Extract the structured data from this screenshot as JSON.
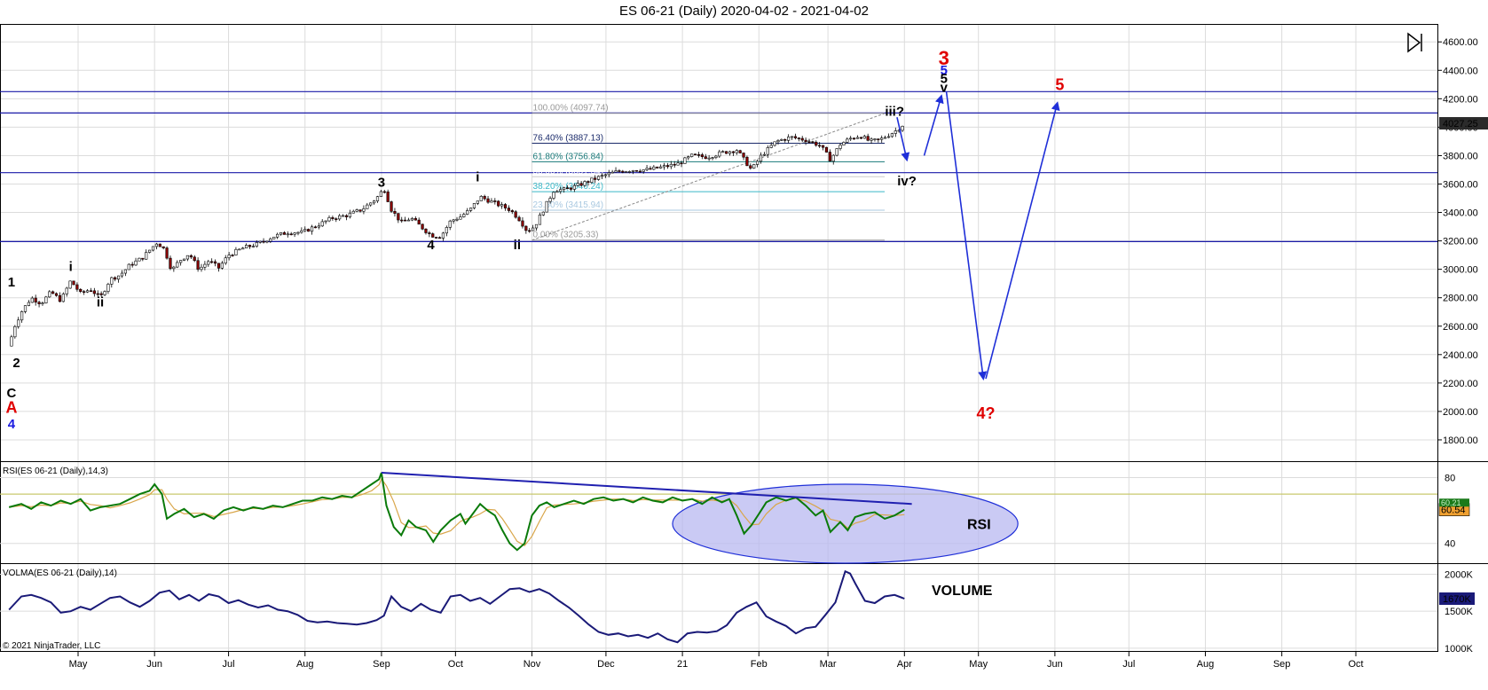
{
  "title": "ES 06-21 (Daily)  2020-04-02 - 2021-04-02",
  "copyright": "© 2021 NinjaTrader, LLC",
  "colors": {
    "grid": "#dcdcdc",
    "hline": "#1a1aa8",
    "arrow": "#1f2fd8",
    "up": "#ffffff",
    "down": "#8b0000",
    "rsi": "#0a7a0a",
    "rsi_ma": "#d9a64a",
    "rsi_level": "#c8c86e",
    "volma": "#1a1a78",
    "red_label": "#e00000"
  },
  "x_axis": {
    "months": [
      {
        "label": "May",
        "day": 29
      },
      {
        "label": "Jun",
        "day": 60
      },
      {
        "label": "Jul",
        "day": 90
      },
      {
        "label": "Aug",
        "day": 121
      },
      {
        "label": "Sep",
        "day": 152
      },
      {
        "label": "Oct",
        "day": 182
      },
      {
        "label": "Nov",
        "day": 213
      },
      {
        "label": "Dec",
        "day": 243
      },
      {
        "label": "21",
        "day": 274
      },
      {
        "label": "Feb",
        "day": 305
      },
      {
        "label": "Mar",
        "day": 333
      },
      {
        "label": "Apr",
        "day": 364
      },
      {
        "label": "May",
        "day": 394
      },
      {
        "label": "Jun",
        "day": 425
      },
      {
        "label": "Jul",
        "day": 455
      },
      {
        "label": "Aug",
        "day": 486
      },
      {
        "label": "Sep",
        "day": 517
      },
      {
        "label": "Oct",
        "day": 547
      }
    ]
  },
  "price_axis": {
    "ticks": [
      1800,
      2000,
      2200,
      2400,
      2600,
      2800,
      3000,
      3200,
      3400,
      3600,
      3800,
      4000,
      4200,
      4400,
      4600
    ],
    "ylim": [
      1650,
      4720
    ],
    "last_price": "4027.25"
  },
  "rsi_axis": {
    "ticks": [
      40,
      80
    ],
    "ylim": [
      28,
      90
    ],
    "level": 70,
    "last_value": "60.54",
    "ma_value": "60.21"
  },
  "vol_axis": {
    "ticks": [
      "1000K",
      "1500K",
      "2000K"
    ],
    "tick_values": [
      1000,
      1500,
      2000
    ],
    "ylim": [
      950,
      2150
    ],
    "last_value": "1670K"
  },
  "panels": {
    "rsi_title": "RSI(ES 06-21 (Daily),14,3)",
    "vol_title": "VOLMA(ES 06-21 (Daily),14)",
    "rsi_label": "RSI",
    "vol_label": "VOLUME"
  },
  "horizontal_lines": [
    3195,
    3680,
    4100,
    4250
  ],
  "fib_levels": [
    {
      "text": "100.00% (4097.74)",
      "value": 4097.74,
      "color": "#9a9a9a"
    },
    {
      "text": "76.40% (3887.13)",
      "value": 3887.13,
      "color": "#1a2a6a"
    },
    {
      "text": "61.80% (3756.84)",
      "value": 3756.84,
      "color": "#1a7a7a"
    },
    {
      "text": "50.00% (3651.54)",
      "value": 3651.54,
      "color": "#ffffff"
    },
    {
      "text": "38.20% (3546.24)",
      "value": 3546.24,
      "color": "#3ab8c8"
    },
    {
      "text": "23.60% (3415.94)",
      "value": 3415.94,
      "color": "#a8c8e0"
    },
    {
      "text": "0.00% (3205.33)",
      "value": 3205.33,
      "color": "#9a9a9a"
    }
  ],
  "wave_labels": [
    {
      "text": "1",
      "day": 2,
      "price": 2880,
      "color": "#000000"
    },
    {
      "text": "2",
      "day": 4,
      "price": 2310,
      "color": "#000000"
    },
    {
      "text": "C",
      "day": 2,
      "price": 2100,
      "color": "#000000"
    },
    {
      "text": "A",
      "day": 2,
      "price": 1990,
      "color": "#e00000"
    },
    {
      "text": "4",
      "day": 2,
      "price": 1880,
      "color": "#1a1ae0"
    },
    {
      "text": "i",
      "day": 26,
      "price": 2990,
      "color": "#000000"
    },
    {
      "text": "ii",
      "day": 38,
      "price": 2740,
      "color": "#000000"
    },
    {
      "text": "3",
      "day": 152,
      "price": 3580,
      "color": "#000000"
    },
    {
      "text": "4",
      "day": 172,
      "price": 3140,
      "color": "#000000"
    },
    {
      "text": "i",
      "day": 191,
      "price": 3620,
      "color": "#000000"
    },
    {
      "text": "ii",
      "day": 207,
      "price": 3140,
      "color": "#000000"
    },
    {
      "text": "iii?",
      "day": 360,
      "price": 4080,
      "color": "#000000"
    },
    {
      "text": "iv?",
      "day": 365,
      "price": 3590,
      "color": "#000000"
    },
    {
      "text": "3",
      "day": 380,
      "price": 4440,
      "color": "#e00000"
    },
    {
      "text": "5",
      "day": 380,
      "price": 4370,
      "color": "#1a1ae0"
    },
    {
      "text": "5",
      "day": 380,
      "price": 4310,
      "color": "#000000"
    },
    {
      "text": "v",
      "day": 380,
      "price": 4250,
      "color": "#000000"
    },
    {
      "text": "5",
      "day": 427,
      "price": 4260,
      "color": "#e00000"
    },
    {
      "text": "4?",
      "day": 397,
      "price": 1950,
      "color": "#e00000"
    }
  ],
  "projection_arrows": [
    {
      "from": [
        361,
        4070
      ],
      "to": [
        365,
        3770
      ]
    },
    {
      "from": [
        372,
        3800
      ],
      "to": [
        379,
        4220
      ]
    },
    {
      "from": [
        381,
        4250
      ],
      "to": [
        396,
        2230
      ]
    },
    {
      "from": [
        397,
        2230
      ],
      "to": [
        426,
        4170
      ]
    }
  ],
  "rsi_trendline": {
    "from": [
      152,
      83
    ],
    "to": [
      367,
      64
    ]
  },
  "rsi_ellipse": {
    "day_center": 340,
    "value_center": 52,
    "day_radius": 70,
    "value_radius": 24
  },
  "chart_data": {
    "type": "candlestick",
    "x_unit": "calendar days since 2020-04-02",
    "price_path": [
      [
        1,
        2460
      ],
      [
        3,
        2590
      ],
      [
        6,
        2700
      ],
      [
        10,
        2800
      ],
      [
        14,
        2760
      ],
      [
        18,
        2840
      ],
      [
        22,
        2780
      ],
      [
        26,
        2920
      ],
      [
        30,
        2830
      ],
      [
        34,
        2860
      ],
      [
        38,
        2800
      ],
      [
        42,
        2930
      ],
      [
        46,
        2960
      ],
      [
        50,
        3030
      ],
      [
        55,
        3080
      ],
      [
        61,
        3190
      ],
      [
        64,
        3140
      ],
      [
        67,
        2990
      ],
      [
        70,
        3060
      ],
      [
        74,
        3110
      ],
      [
        78,
        3000
      ],
      [
        82,
        3060
      ],
      [
        86,
        3010
      ],
      [
        90,
        3100
      ],
      [
        96,
        3150
      ],
      [
        102,
        3180
      ],
      [
        108,
        3230
      ],
      [
        114,
        3260
      ],
      [
        120,
        3260
      ],
      [
        126,
        3310
      ],
      [
        132,
        3360
      ],
      [
        138,
        3380
      ],
      [
        144,
        3420
      ],
      [
        150,
        3500
      ],
      [
        153,
        3570
      ],
      [
        156,
        3420
      ],
      [
        160,
        3330
      ],
      [
        164,
        3360
      ],
      [
        168,
        3300
      ],
      [
        172,
        3240
      ],
      [
        176,
        3230
      ],
      [
        180,
        3340
      ],
      [
        184,
        3370
      ],
      [
        188,
        3420
      ],
      [
        192,
        3510
      ],
      [
        196,
        3480
      ],
      [
        200,
        3450
      ],
      [
        204,
        3420
      ],
      [
        208,
        3350
      ],
      [
        211,
        3270
      ],
      [
        214,
        3300
      ],
      [
        218,
        3430
      ],
      [
        222,
        3560
      ],
      [
        226,
        3560
      ],
      [
        230,
        3580
      ],
      [
        236,
        3620
      ],
      [
        242,
        3660
      ],
      [
        248,
        3690
      ],
      [
        254,
        3700
      ],
      [
        260,
        3700
      ],
      [
        266,
        3720
      ],
      [
        272,
        3740
      ],
      [
        278,
        3800
      ],
      [
        284,
        3790
      ],
      [
        290,
        3820
      ],
      [
        296,
        3840
      ],
      [
        302,
        3700
      ],
      [
        306,
        3800
      ],
      [
        312,
        3900
      ],
      [
        318,
        3930
      ],
      [
        324,
        3910
      ],
      [
        330,
        3870
      ],
      [
        334,
        3770
      ],
      [
        338,
        3880
      ],
      [
        342,
        3920
      ],
      [
        346,
        3940
      ],
      [
        350,
        3900
      ],
      [
        354,
        3910
      ],
      [
        358,
        3950
      ],
      [
        361,
        3980
      ],
      [
        364,
        4027
      ]
    ],
    "rsi_path": [
      [
        1,
        62
      ],
      [
        6,
        64
      ],
      [
        10,
        61
      ],
      [
        14,
        65
      ],
      [
        18,
        63
      ],
      [
        22,
        66
      ],
      [
        26,
        64
      ],
      [
        30,
        67
      ],
      [
        34,
        60
      ],
      [
        38,
        62
      ],
      [
        42,
        63
      ],
      [
        46,
        64
      ],
      [
        50,
        67
      ],
      [
        54,
        70
      ],
      [
        58,
        72
      ],
      [
        60,
        76
      ],
      [
        63,
        70
      ],
      [
        65,
        55
      ],
      [
        68,
        58
      ],
      [
        72,
        61
      ],
      [
        76,
        56
      ],
      [
        80,
        58
      ],
      [
        84,
        55
      ],
      [
        88,
        60
      ],
      [
        92,
        62
      ],
      [
        96,
        60
      ],
      [
        100,
        62
      ],
      [
        104,
        61
      ],
      [
        108,
        63
      ],
      [
        112,
        62
      ],
      [
        116,
        64
      ],
      [
        120,
        66
      ],
      [
        124,
        66
      ],
      [
        128,
        68
      ],
      [
        132,
        67
      ],
      [
        136,
        69
      ],
      [
        140,
        68
      ],
      [
        144,
        72
      ],
      [
        148,
        76
      ],
      [
        151,
        79
      ],
      [
        152,
        83
      ],
      [
        154,
        63
      ],
      [
        157,
        50
      ],
      [
        160,
        45
      ],
      [
        163,
        54
      ],
      [
        166,
        50
      ],
      [
        170,
        48
      ],
      [
        173,
        41
      ],
      [
        176,
        48
      ],
      [
        180,
        54
      ],
      [
        184,
        58
      ],
      [
        186,
        52
      ],
      [
        189,
        58
      ],
      [
        192,
        64
      ],
      [
        195,
        60
      ],
      [
        198,
        57
      ],
      [
        201,
        48
      ],
      [
        204,
        40
      ],
      [
        207,
        36
      ],
      [
        210,
        40
      ],
      [
        213,
        57
      ],
      [
        216,
        63
      ],
      [
        219,
        65
      ],
      [
        222,
        62
      ],
      [
        226,
        64
      ],
      [
        230,
        66
      ],
      [
        234,
        64
      ],
      [
        238,
        67
      ],
      [
        242,
        68
      ],
      [
        246,
        66
      ],
      [
        250,
        67
      ],
      [
        254,
        65
      ],
      [
        258,
        68
      ],
      [
        262,
        66
      ],
      [
        266,
        65
      ],
      [
        270,
        68
      ],
      [
        274,
        66
      ],
      [
        278,
        67
      ],
      [
        282,
        64
      ],
      [
        286,
        68
      ],
      [
        290,
        65
      ],
      [
        293,
        67
      ],
      [
        296,
        57
      ],
      [
        299,
        46
      ],
      [
        302,
        51
      ],
      [
        305,
        58
      ],
      [
        308,
        65
      ],
      [
        312,
        68
      ],
      [
        316,
        66
      ],
      [
        320,
        68
      ],
      [
        324,
        63
      ],
      [
        328,
        57
      ],
      [
        331,
        60
      ],
      [
        334,
        47
      ],
      [
        338,
        53
      ],
      [
        341,
        48
      ],
      [
        344,
        56
      ],
      [
        348,
        58
      ],
      [
        352,
        59
      ],
      [
        356,
        55
      ],
      [
        360,
        57
      ],
      [
        364,
        60.5
      ]
    ],
    "volma_path": [
      [
        1,
        1520
      ],
      [
        6,
        1700
      ],
      [
        10,
        1720
      ],
      [
        14,
        1680
      ],
      [
        18,
        1620
      ],
      [
        22,
        1480
      ],
      [
        26,
        1500
      ],
      [
        30,
        1560
      ],
      [
        34,
        1520
      ],
      [
        38,
        1600
      ],
      [
        42,
        1680
      ],
      [
        46,
        1700
      ],
      [
        50,
        1620
      ],
      [
        54,
        1560
      ],
      [
        58,
        1640
      ],
      [
        62,
        1750
      ],
      [
        66,
        1780
      ],
      [
        70,
        1660
      ],
      [
        74,
        1720
      ],
      [
        78,
        1640
      ],
      [
        82,
        1730
      ],
      [
        86,
        1700
      ],
      [
        90,
        1610
      ],
      [
        94,
        1650
      ],
      [
        98,
        1590
      ],
      [
        102,
        1550
      ],
      [
        106,
        1580
      ],
      [
        110,
        1520
      ],
      [
        114,
        1500
      ],
      [
        118,
        1450
      ],
      [
        122,
        1370
      ],
      [
        126,
        1350
      ],
      [
        130,
        1360
      ],
      [
        134,
        1340
      ],
      [
        138,
        1330
      ],
      [
        142,
        1320
      ],
      [
        146,
        1340
      ],
      [
        150,
        1380
      ],
      [
        153,
        1440
      ],
      [
        156,
        1700
      ],
      [
        160,
        1560
      ],
      [
        164,
        1500
      ],
      [
        168,
        1600
      ],
      [
        172,
        1520
      ],
      [
        176,
        1480
      ],
      [
        180,
        1700
      ],
      [
        184,
        1720
      ],
      [
        188,
        1640
      ],
      [
        192,
        1680
      ],
      [
        196,
        1600
      ],
      [
        200,
        1700
      ],
      [
        204,
        1800
      ],
      [
        208,
        1810
      ],
      [
        212,
        1760
      ],
      [
        216,
        1800
      ],
      [
        220,
        1740
      ],
      [
        224,
        1640
      ],
      [
        228,
        1550
      ],
      [
        232,
        1440
      ],
      [
        236,
        1320
      ],
      [
        240,
        1220
      ],
      [
        244,
        1180
      ],
      [
        248,
        1200
      ],
      [
        252,
        1160
      ],
      [
        256,
        1180
      ],
      [
        260,
        1140
      ],
      [
        264,
        1200
      ],
      [
        268,
        1120
      ],
      [
        272,
        1080
      ],
      [
        276,
        1200
      ],
      [
        280,
        1220
      ],
      [
        284,
        1210
      ],
      [
        288,
        1230
      ],
      [
        292,
        1310
      ],
      [
        296,
        1480
      ],
      [
        300,
        1560
      ],
      [
        304,
        1620
      ],
      [
        308,
        1430
      ],
      [
        312,
        1360
      ],
      [
        316,
        1300
      ],
      [
        320,
        1200
      ],
      [
        324,
        1270
      ],
      [
        328,
        1290
      ],
      [
        332,
        1450
      ],
      [
        336,
        1620
      ],
      [
        340,
        2040
      ],
      [
        342,
        2010
      ],
      [
        344,
        1880
      ],
      [
        348,
        1640
      ],
      [
        352,
        1610
      ],
      [
        356,
        1700
      ],
      [
        360,
        1720
      ],
      [
        364,
        1670
      ]
    ]
  }
}
